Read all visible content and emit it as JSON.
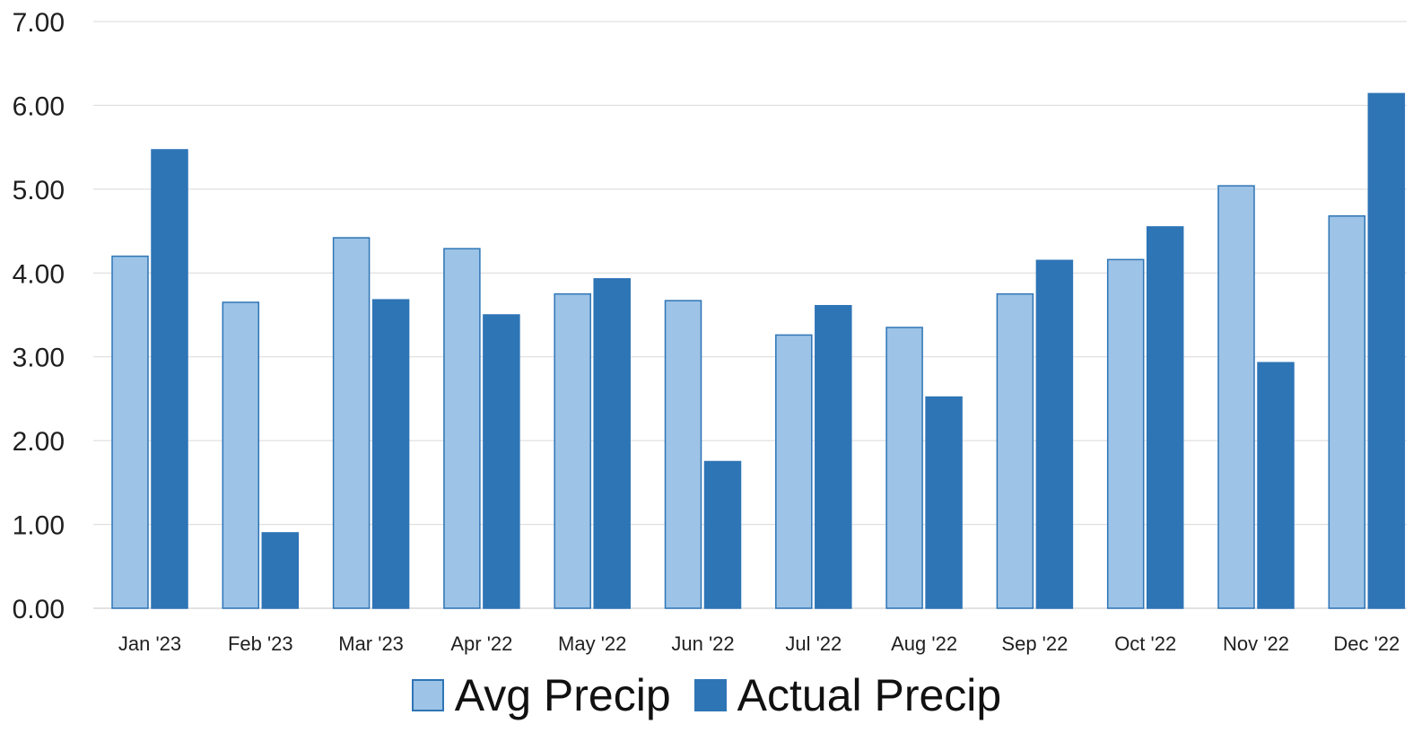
{
  "colors": {
    "avg": "#9dc3e6",
    "avg_border": "#2e75b6",
    "actual": "#2e75b6",
    "grid": "#d9d9d9"
  },
  "chart_data": {
    "type": "bar",
    "categories": [
      "Jan '23",
      "Feb '23",
      "Mar '23",
      "Apr '22",
      "May '22",
      "Jun '22",
      "Jul '22",
      "Aug '22",
      "Sep '22",
      "Oct '22",
      "Nov '22",
      "Dec '22"
    ],
    "series": [
      {
        "name": "Avg Precip",
        "values": [
          4.2,
          3.65,
          4.42,
          4.29,
          3.75,
          3.67,
          3.26,
          3.35,
          3.75,
          4.16,
          5.04,
          4.68
        ]
      },
      {
        "name": "Actual Precip",
        "values": [
          5.47,
          0.9,
          3.68,
          3.5,
          3.93,
          1.75,
          3.61,
          2.52,
          4.15,
          4.55,
          2.93,
          6.14
        ]
      }
    ],
    "ylim": [
      0,
      7
    ],
    "yticks": [
      "0.00",
      "1.00",
      "2.00",
      "3.00",
      "4.00",
      "5.00",
      "6.00",
      "7.00"
    ],
    "grid": true,
    "legend": "bottom"
  }
}
